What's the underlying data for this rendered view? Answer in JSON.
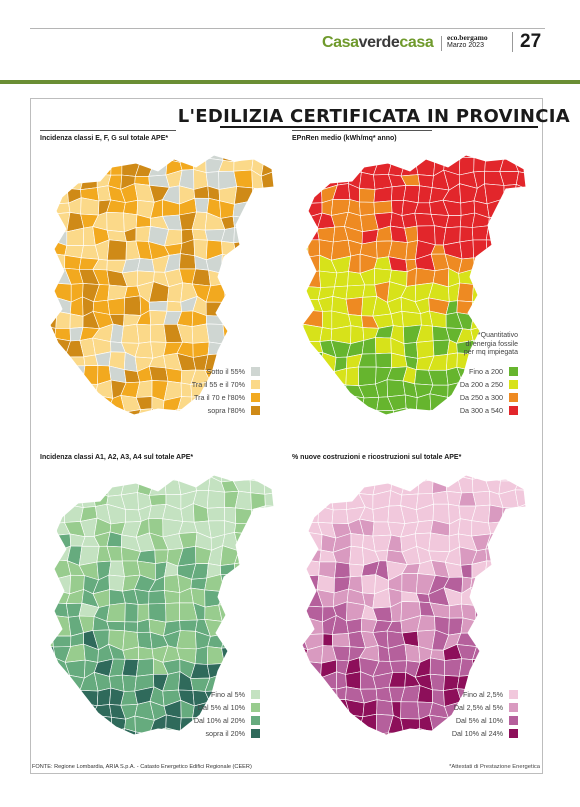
{
  "masthead": {
    "brand_part1": "Casa",
    "brand_part2": "verde",
    "brand_part3": "casa",
    "publication": "eco.bergamo",
    "date": "Marzo 2023",
    "page_number": "27"
  },
  "title": "L'EDILIZIA CERTIFICATA IN PROVINCIA",
  "panels": [
    {
      "title": "Incidenza classi E, F, G sul totale APE*",
      "note": [],
      "legend": [
        {
          "label": "Sotto il 55%",
          "color": "#cfd6d2"
        },
        {
          "label": "Tra il 55 e il 70%",
          "color": "#fbd989"
        },
        {
          "label": "Tra il 70 e l'80%",
          "color": "#f2a91f"
        },
        {
          "label": "sopra l'80%",
          "color": "#cf8a17"
        }
      ]
    },
    {
      "title": "EPnRen medio (kWh/mq* anno)",
      "note": [
        "*Quantitativo",
        "di energia fossile",
        "per mq impiegata"
      ],
      "legend": [
        {
          "label": "Fino a 200",
          "color": "#66b52e"
        },
        {
          "label": "Da 200 a 250",
          "color": "#d7e21a"
        },
        {
          "label": "Da 250 a 300",
          "color": "#ee8a22"
        },
        {
          "label": "Da 300 a 540",
          "color": "#e2262b"
        }
      ]
    },
    {
      "title": "Incidenza classi A1, A2, A3, A4 sul totale APE*",
      "note": [],
      "legend": [
        {
          "label": "Fino al 5%",
          "color": "#c4e2c1"
        },
        {
          "label": "Dal 5% al 10%",
          "color": "#98cc8e"
        },
        {
          "label": "Dal 10% al 20%",
          "color": "#66ab7e"
        },
        {
          "label": "sopra il 20%",
          "color": "#2f6a5b"
        }
      ]
    },
    {
      "title": "% nuove costruzioni e ricostruzioni sul totale APE*",
      "note": [],
      "legend": [
        {
          "label": "Fino al 2,5%",
          "color": "#f1c8dc"
        },
        {
          "label": "Dal 2,5% al 5%",
          "color": "#d99ac0"
        },
        {
          "label": "Dal 5% al 10%",
          "color": "#b5609c"
        },
        {
          "label": "Dal 10% al 24%",
          "color": "#8d0f5a"
        }
      ]
    }
  ],
  "footer": {
    "source": "FONTE: Regione Lombardia, ARIA S.p.A. - Catasto Energetico Edifici Regionale (CEER)",
    "footnote": "*Attestati di Prestazione Energetica"
  }
}
